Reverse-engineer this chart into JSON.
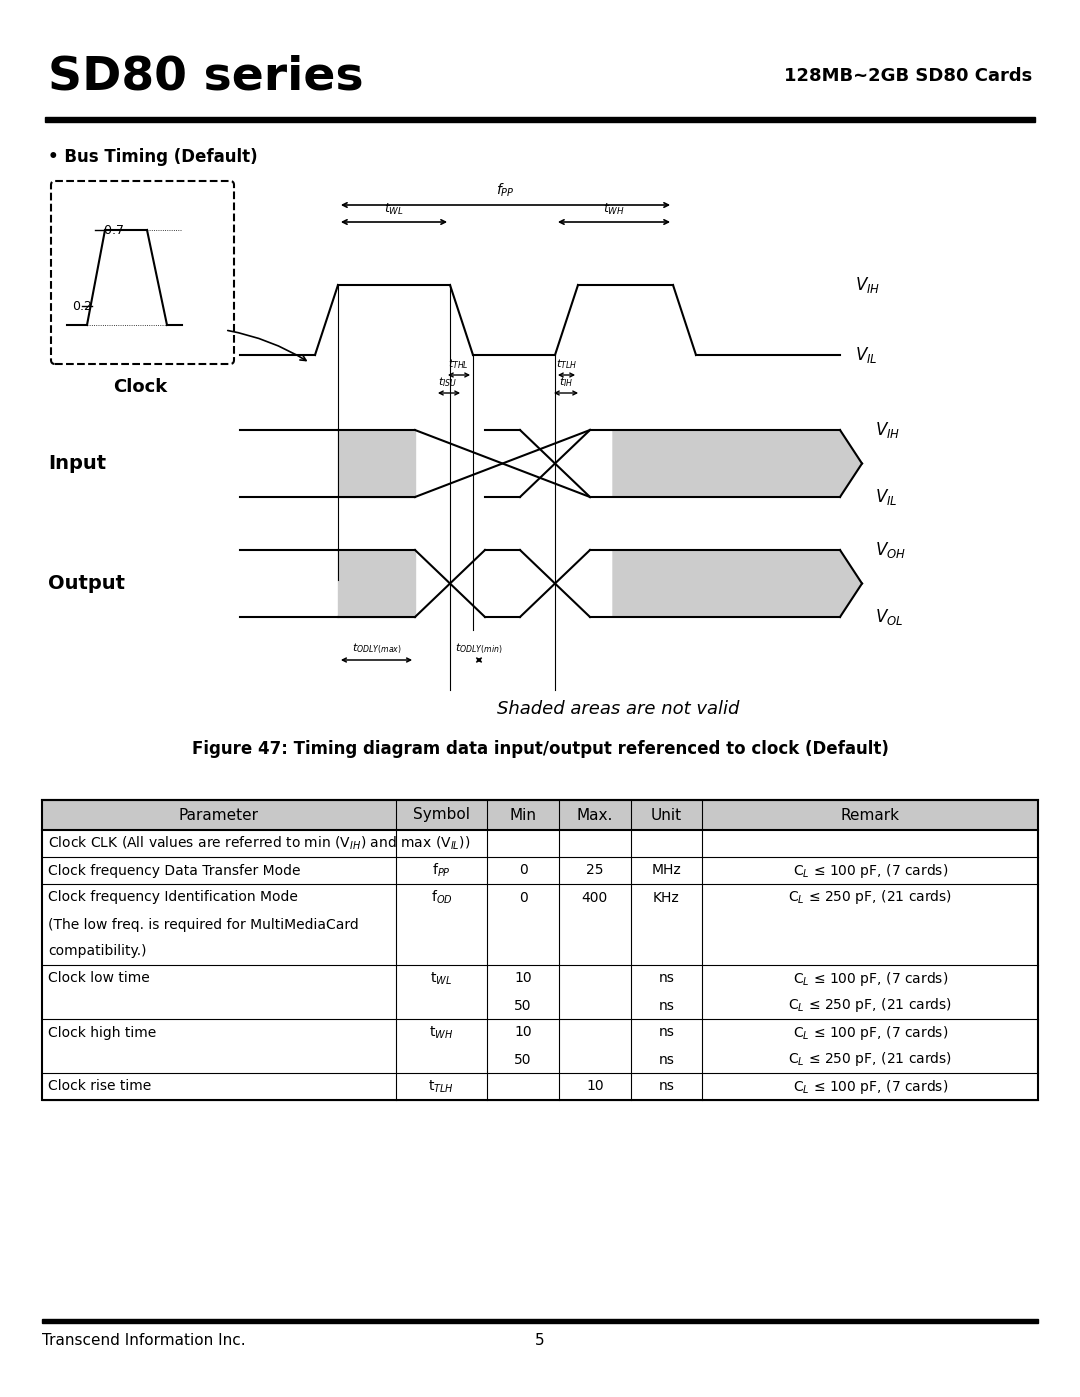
{
  "title_left": "SD80 series",
  "title_right": "128MB~2GB SD80 Cards",
  "section_header": "• Bus Timing (Default)",
  "figure_caption": "Figure 47: Timing diagram data input/output referenced to clock (Default)",
  "shaded_note": "Shaded areas are not valid",
  "footer_left": "Transcend Information Inc.",
  "footer_center": "5",
  "table_header": [
    "Parameter",
    "Symbol",
    "Min",
    "Max.",
    "Unit",
    "Remark"
  ],
  "bg_color": "#ffffff",
  "header_gray": "#c8c8c8",
  "diagram_gray": "#cccccc"
}
